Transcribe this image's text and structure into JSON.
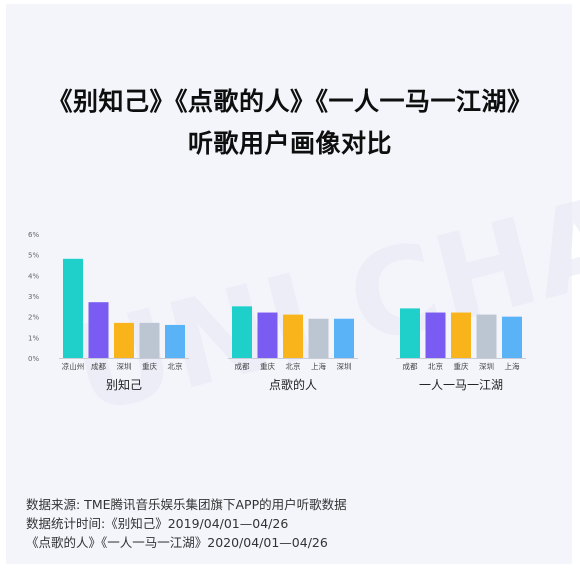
{
  "title_line1": "《别知己》《点歌的人》《一人一马一江湖》",
  "title_line2": "听歌用户画像对比",
  "watermark_text": "UNI CHART",
  "source_lines": [
    "数据来源: TME腾讯音乐娱乐集团旗下APP的用户听歌数据",
    "数据统计时间:《别知己》2019/04/01—04/26",
    "《点歌的人》《一人一马一江湖》2020/04/01—04/26"
  ],
  "colors": {
    "teal": "#1ed0c9",
    "purple": "#7a5cf2",
    "orange": "#f9b41b",
    "gray": "#bcc5d2",
    "blue": "#5ab2f7"
  },
  "chart_data": {
    "type": "bar",
    "ylim": [
      0,
      6
    ],
    "yticks": [
      "0%",
      "1%",
      "2%",
      "3%",
      "4%",
      "5%",
      "6%"
    ],
    "grid": false,
    "groups": [
      {
        "name": "别知己",
        "categories": [
          "凉山州",
          "成都",
          "深圳",
          "重庆",
          "北京"
        ],
        "values": [
          4.8,
          2.7,
          1.7,
          1.7,
          1.6
        ],
        "colors": [
          "#1ed0c9",
          "#7a5cf2",
          "#f9b41b",
          "#bcc5d2",
          "#5ab2f7"
        ]
      },
      {
        "name": "点歌的人",
        "categories": [
          "成都",
          "重庆",
          "北京",
          "上海",
          "深圳"
        ],
        "values": [
          2.5,
          2.2,
          2.1,
          1.9,
          1.9
        ],
        "colors": [
          "#1ed0c9",
          "#7a5cf2",
          "#f9b41b",
          "#bcc5d2",
          "#5ab2f7"
        ]
      },
      {
        "name": "一人一马一江湖",
        "categories": [
          "成都",
          "北京",
          "重庆",
          "深圳",
          "上海"
        ],
        "values": [
          2.4,
          2.2,
          2.2,
          2.1,
          2.0
        ],
        "colors": [
          "#1ed0c9",
          "#7a5cf2",
          "#f9b41b",
          "#bcc5d2",
          "#5ab2f7"
        ]
      }
    ]
  }
}
